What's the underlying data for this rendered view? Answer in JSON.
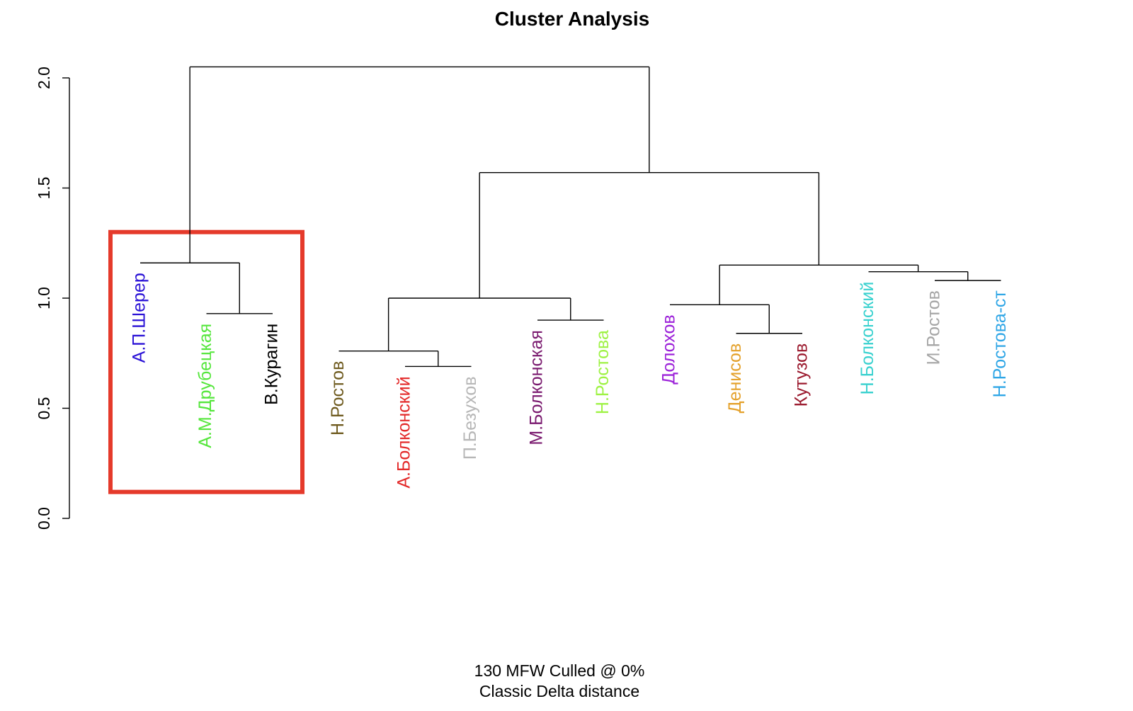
{
  "chart_data": {
    "type": "dendrogram",
    "title": "Cluster Analysis",
    "subtitle_lines": [
      "130 MFW  Culled @ 0%",
      "Classic Delta distance"
    ],
    "ylim": [
      0,
      2.0
    ],
    "yticks": [
      0.0,
      0.5,
      1.0,
      1.5,
      2.0
    ],
    "ytick_labels": [
      "0.0",
      "0.5",
      "1.0",
      "1.5",
      "2.0"
    ],
    "leaves": [
      {
        "label": "А.П.Шерер",
        "color": "#2a12d6",
        "height": 1.16
      },
      {
        "label": "А.М.Друбецкая",
        "color": "#55e63c",
        "height": 0.93
      },
      {
        "label": "В.Курагин",
        "color": "#000000",
        "height": 0.93
      },
      {
        "label": "Н.Ростов",
        "color": "#6f5b1f",
        "height": 0.76
      },
      {
        "label": "А.Болконский",
        "color": "#e32a2a",
        "height": 0.69
      },
      {
        "label": "П.Безухов",
        "color": "#b7b7b7",
        "height": 0.69
      },
      {
        "label": "М.Болконская",
        "color": "#7a1a6f",
        "height": 0.9
      },
      {
        "label": "Н.Ростова",
        "color": "#9ef244",
        "height": 0.9
      },
      {
        "label": "Долохов",
        "color": "#9c22d9",
        "height": 0.97
      },
      {
        "label": "Денисов",
        "color": "#e4a12b",
        "height": 0.84
      },
      {
        "label": "Кутузов",
        "color": "#9b1a2e",
        "height": 0.84
      },
      {
        "label": "Н.Болконский",
        "color": "#39d1cf",
        "height": 1.12
      },
      {
        "label": "И.Ростов",
        "color": "#a6a6a6",
        "height": 1.08
      },
      {
        "label": "Н.Ростова-ст",
        "color": "#2fa6e6",
        "height": 1.08
      }
    ],
    "merges": [
      {
        "left": 1,
        "right": 2,
        "height": 0.93
      },
      {
        "left": 0,
        "right": "m0",
        "height": 1.16
      },
      {
        "left": 4,
        "right": 5,
        "height": 0.69
      },
      {
        "left": 3,
        "right": "m2",
        "height": 0.76
      },
      {
        "left": 6,
        "right": 7,
        "height": 0.9
      },
      {
        "left": "m3",
        "right": "m4",
        "height": 1.0
      },
      {
        "left": 9,
        "right": 10,
        "height": 0.84
      },
      {
        "left": 8,
        "right": "m6",
        "height": 0.97
      },
      {
        "left": 12,
        "right": 13,
        "height": 1.08
      },
      {
        "left": 11,
        "right": "m8",
        "height": 1.12
      },
      {
        "left": "m7",
        "right": "m9",
        "height": 1.15
      },
      {
        "left": "m5",
        "right": "m10",
        "height": 1.57
      },
      {
        "left": "m1",
        "right": "m11",
        "height": 2.05
      }
    ],
    "highlight": {
      "color": "#e53a2b",
      "ymin": 0.12,
      "ymax": 1.3,
      "leaves": [
        0,
        2
      ]
    }
  }
}
